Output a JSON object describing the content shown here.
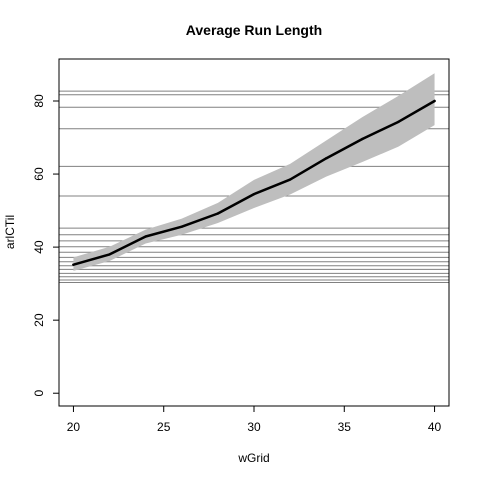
{
  "chart_data": {
    "type": "line",
    "title": "Average Run Length",
    "xlabel": "wGrid",
    "ylabel": "arlCTil",
    "xlim": [
      19.2,
      40.8
    ],
    "ylim": [
      -3.5,
      91.5
    ],
    "x_ticks": [
      20,
      25,
      30,
      35,
      40
    ],
    "y_ticks": [
      0,
      20,
      40,
      60,
      80
    ],
    "x_tick_labels": [
      "20",
      "25",
      "30",
      "35",
      "40"
    ],
    "y_tick_labels": [
      "0",
      "20",
      "40",
      "60",
      "80"
    ],
    "series": [
      {
        "values": [
          {
            "x": 20,
            "y": 35.2
          },
          {
            "x": 22,
            "y": 38.0
          },
          {
            "x": 24,
            "y": 42.9
          },
          {
            "x": 26,
            "y": 45.6
          },
          {
            "x": 28,
            "y": 49.2
          },
          {
            "x": 30,
            "y": 54.5
          },
          {
            "x": 32,
            "y": 58.5
          },
          {
            "x": 34,
            "y": 64.3
          },
          {
            "x": 36,
            "y": 69.6
          },
          {
            "x": 38,
            "y": 74.3
          },
          {
            "x": 40,
            "y": 80.0
          }
        ],
        "band_lower": [
          33.5,
          36.2,
          41.0,
          43.4,
          46.6,
          50.7,
          54.4,
          59.3,
          63.3,
          67.5,
          73.4
        ],
        "band_upper": [
          37.2,
          40.1,
          44.8,
          47.8,
          52.1,
          58.4,
          62.8,
          69.2,
          75.6,
          81.4,
          87.6
        ]
      }
    ],
    "reference_lines": [
      30.3,
      31.0,
      31.9,
      32.8,
      33.9,
      34.9,
      36.0,
      37.2,
      38.6,
      40.1,
      41.7,
      43.4,
      45.2,
      54.0,
      62.1,
      72.4,
      78.3,
      81.7,
      82.7
    ],
    "colors": {
      "line": "#000000",
      "band": "#bebebe",
      "reference": "#808080"
    },
    "grid": false
  }
}
